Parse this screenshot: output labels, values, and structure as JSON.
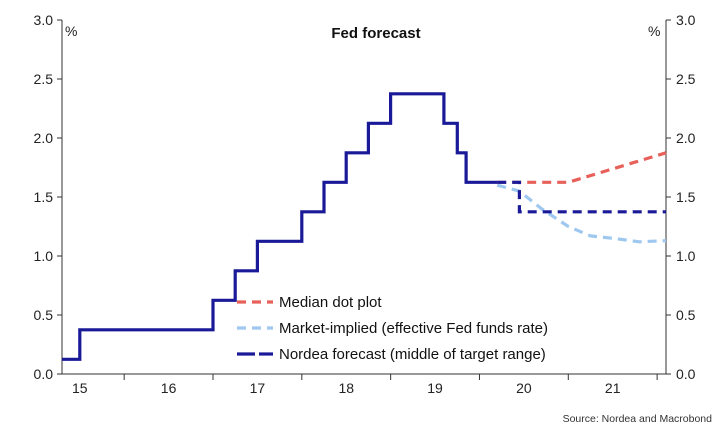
{
  "chart_data": {
    "type": "line",
    "title": "Fed forecast",
    "y_unit_left": "%",
    "y_unit_right": "%",
    "source": "Source: Nordea and Macrobond",
    "ylim": [
      0.0,
      3.0
    ],
    "yticks": [
      "0.0",
      "0.5",
      "1.0",
      "1.5",
      "2.0",
      "2.5",
      "3.0"
    ],
    "xlim": [
      2014.8,
      2021.6
    ],
    "xticks": [
      {
        "label": "15",
        "pos": 2015.0
      },
      {
        "label": "16",
        "pos": 2016.0
      },
      {
        "label": "17",
        "pos": 2017.0
      },
      {
        "label": "18",
        "pos": 2018.0
      },
      {
        "label": "19",
        "pos": 2019.0
      },
      {
        "label": "20",
        "pos": 2020.0
      },
      {
        "label": "21",
        "pos": 2021.0
      }
    ],
    "grid": false,
    "legend_position": "bottom-center",
    "series": [
      {
        "name": "Median dot plot",
        "style": "dashed",
        "color": "#e8605a",
        "x": [
          2019.7,
          2020.5,
          2021.6
        ],
        "y": [
          1.625,
          1.625,
          1.875
        ]
      },
      {
        "name": "Market-implied (effective Fed funds rate)",
        "style": "dashed",
        "color": "#9fc8f0",
        "x": [
          2019.7,
          2019.95,
          2020.2,
          2020.5,
          2020.75,
          2021.0,
          2021.3,
          2021.6
        ],
        "y": [
          1.6,
          1.55,
          1.4,
          1.25,
          1.17,
          1.15,
          1.12,
          1.13
        ]
      },
      {
        "name": "Nordea forecast (middle of target range)",
        "style": "solid",
        "color": "#1a1a99",
        "x": [
          2014.8,
          2015.0,
          2015.0,
          2016.5,
          2016.5,
          2016.75,
          2016.75,
          2017.0,
          2017.0,
          2017.5,
          2017.5,
          2017.75,
          2017.75,
          2018.0,
          2018.0,
          2018.25,
          2018.25,
          2018.5,
          2018.5,
          2019.1,
          2019.1,
          2019.25,
          2019.25,
          2019.35,
          2019.35,
          2019.7
        ],
        "y": [
          0.125,
          0.125,
          0.375,
          0.375,
          0.625,
          0.625,
          0.875,
          0.875,
          1.125,
          1.125,
          1.375,
          1.375,
          1.625,
          1.625,
          1.875,
          1.875,
          2.125,
          2.125,
          2.375,
          2.375,
          2.125,
          2.125,
          1.875,
          1.875,
          1.625,
          1.625
        ]
      },
      {
        "name": "Nordea forecast (middle of target range)",
        "style": "dashed",
        "color": "#1a1a99",
        "x": [
          2019.7,
          2019.95,
          2019.95,
          2021.6
        ],
        "y": [
          1.625,
          1.625,
          1.375,
          1.375
        ]
      }
    ],
    "legend": [
      {
        "label": "Median dot plot",
        "color": "#e8605a",
        "style": "dashed"
      },
      {
        "label": "Market-implied (effective Fed funds rate)",
        "color": "#9fc8f0",
        "style": "dashed"
      },
      {
        "label": "Nordea forecast (middle of target range)",
        "color": "#1a1a99",
        "style": "solid-dashed"
      }
    ]
  }
}
